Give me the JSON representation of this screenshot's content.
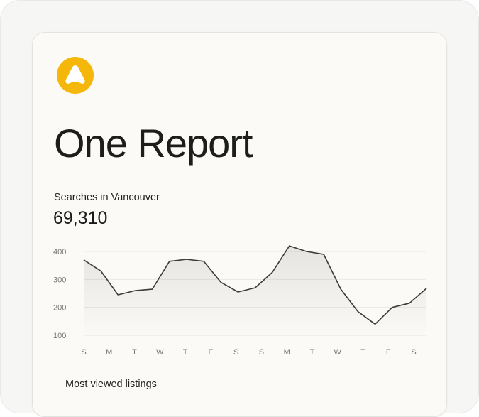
{
  "header": {
    "logo_icon": "triangle-logo-icon",
    "logo_color": "#f5b80a",
    "title": "One Report"
  },
  "metric": {
    "label": "Searches in Vancouver",
    "value": "69,310"
  },
  "chart_data": {
    "type": "area",
    "title": "",
    "xlabel": "",
    "ylabel": "",
    "ylim": [
      100,
      400
    ],
    "yticks": [
      400,
      300,
      200,
      100
    ],
    "grid": true,
    "x_tick_labels": [
      "S",
      "M",
      "T",
      "W",
      "T",
      "F",
      "S",
      "S",
      "M",
      "T",
      "W",
      "T",
      "F",
      "S"
    ],
    "series": [
      {
        "values": [
          370,
          330,
          245,
          260,
          265,
          365,
          372,
          365,
          290,
          255,
          270,
          325,
          420,
          400,
          390,
          265,
          185,
          140,
          200,
          215,
          268
        ]
      }
    ],
    "line_color": "#3a3a3a"
  },
  "listings": {
    "heading": "Most viewed listings"
  }
}
